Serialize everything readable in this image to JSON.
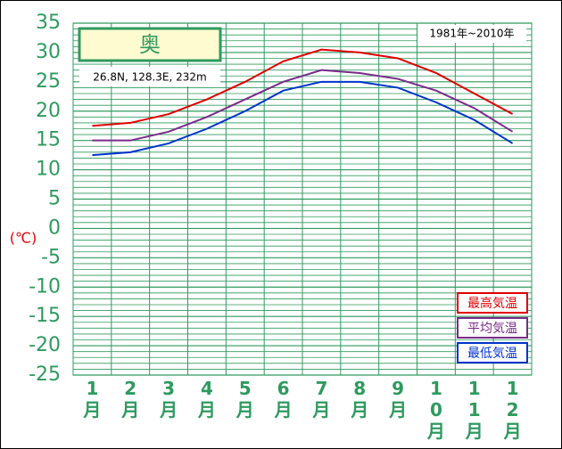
{
  "chart_data": {
    "type": "line",
    "title": "奥",
    "subtitle": "26.8N, 128.3E, 232m",
    "period": "1981年~2010年",
    "y_label": "(℃)",
    "categories": [
      "1月",
      "2月",
      "3月",
      "4月",
      "5月",
      "6月",
      "7月",
      "8月",
      "9月",
      "10月",
      "11月",
      "12月"
    ],
    "series": [
      {
        "name": "最高気温",
        "color": "#e00000",
        "values": [
          17.5,
          18,
          19.5,
          22,
          25,
          28.5,
          30.5,
          30,
          29,
          26.5,
          23,
          19.5
        ]
      },
      {
        "name": "平均気温",
        "color": "#7a2a8a",
        "values": [
          15,
          15,
          16.5,
          19,
          22,
          25,
          27,
          26.5,
          25.5,
          23.5,
          20.5,
          16.5
        ]
      },
      {
        "name": "最低気温",
        "color": "#0033cc",
        "values": [
          12.5,
          13,
          14.5,
          17,
          20,
          23.5,
          25,
          25,
          24,
          21.5,
          18.5,
          14.5
        ]
      }
    ],
    "ylim": [
      -25,
      35
    ],
    "yticks": [
      -25,
      -20,
      -15,
      -10,
      -5,
      0,
      5,
      10,
      15,
      20,
      25,
      30,
      35
    ],
    "grid": true
  }
}
